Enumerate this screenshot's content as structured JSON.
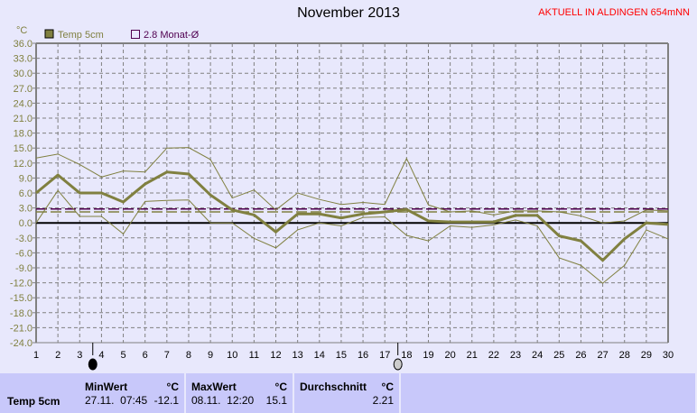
{
  "title": "November 2013",
  "banner": "AKTUELL IN ALDINGEN 654mNN",
  "colors": {
    "series": "#808040",
    "average": "#500050",
    "zero": "#000000",
    "grid": "#808080",
    "banner": "#ff0000"
  },
  "chart_data": {
    "type": "line",
    "title": "November 2013",
    "ylabel": "°C",
    "ylim": [
      -24,
      36
    ],
    "yticks": [
      "36.0",
      "33.0",
      "30.0",
      "27.0",
      "24.0",
      "21.0",
      "18.0",
      "15.0",
      "12.0",
      "9.0",
      "6.0",
      "3.0",
      "0.0",
      "-3.0",
      "-6.0",
      "-9.0",
      "-12.0",
      "-15.0",
      "-18.0",
      "-21.0",
      "-24.0"
    ],
    "x": [
      1,
      2,
      3,
      4,
      5,
      6,
      7,
      8,
      9,
      10,
      11,
      12,
      13,
      14,
      15,
      16,
      17,
      18,
      19,
      20,
      21,
      22,
      23,
      24,
      25,
      26,
      27,
      28,
      29,
      30
    ],
    "grid": true,
    "legend": {
      "placement": "top-left",
      "items": [
        "Temp 5cm",
        "2.8 Monat-Ø"
      ]
    },
    "series": [
      {
        "name": "Temp 5cm",
        "values": [
          6,
          9.6,
          6,
          6,
          4.2,
          7.8,
          10.2,
          9.8,
          5.6,
          2.6,
          1.6,
          -1.8,
          1.8,
          1.8,
          1,
          1.8,
          2.2,
          2.7,
          0.4,
          0.2,
          0.2,
          0.2,
          1.5,
          1.5,
          -2.6,
          -3.6,
          -7.5,
          -3.2,
          0,
          -0.3
        ]
      },
      {
        "values": [
          13,
          13.8,
          11.7,
          9.2,
          10.4,
          10.2,
          15,
          15.1,
          12.7,
          5,
          6.6,
          2.6,
          6,
          4.7,
          3.7,
          4.1,
          3.7,
          12.9,
          3.6,
          2.2,
          2.4,
          1.6,
          2.4,
          2.4,
          2.2,
          1.4,
          0,
          0.4,
          2.6,
          2.4
        ]
      },
      {
        "values": [
          0,
          6.5,
          1.3,
          1.3,
          -2.2,
          4.3,
          4.5,
          4.6,
          0,
          0,
          -3.1,
          -5,
          -1.4,
          0,
          -0.6,
          1.1,
          1.2,
          -2.5,
          -3.6,
          -0.6,
          -0.9,
          -0.4,
          0.6,
          -0.6,
          -7,
          -8.5,
          -12.1,
          -8.5,
          -1.4,
          -3.2
        ]
      }
    ],
    "reference_lines": [
      {
        "name": "2.8 Monat-Ø",
        "value": 2.8
      },
      {
        "value": 2.21
      }
    ],
    "moon_phases": [
      {
        "phase": "new-moon",
        "day": 3.6
      },
      {
        "phase": "full-moon",
        "day": 17.6
      }
    ]
  },
  "table": {
    "row_label": "Temp 5cm",
    "min": {
      "header": "MinWert",
      "unit": "°C",
      "time": "27.11.  07:45",
      "value": "-12.1"
    },
    "max": {
      "header": "MaxWert",
      "unit": "°C",
      "time": "08.11.  12:20",
      "value": "15.1"
    },
    "avg": {
      "header": "Durchschnitt",
      "unit": "°C",
      "value": "2.21"
    }
  }
}
